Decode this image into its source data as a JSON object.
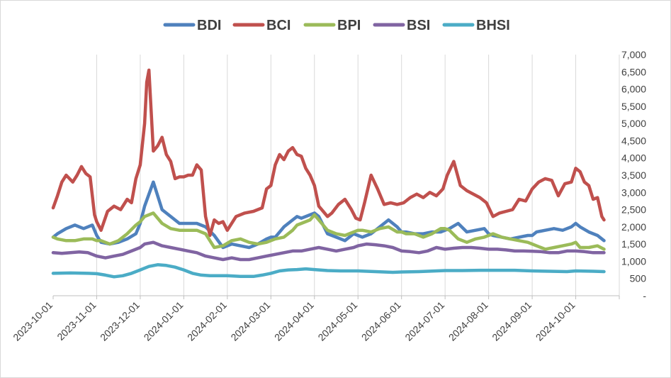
{
  "chart_data": {
    "type": "line",
    "title": "",
    "xlabel": "",
    "ylabel": "",
    "ylim": [
      0,
      7000
    ],
    "y_axis_position": "right",
    "y_ticks": [
      {
        "value": 0,
        "label": "-"
      },
      {
        "value": 500,
        "label": "500"
      },
      {
        "value": 1000,
        "label": "1,000"
      },
      {
        "value": 1500,
        "label": "1,500"
      },
      {
        "value": 2000,
        "label": "2,000"
      },
      {
        "value": 2500,
        "label": "2,500"
      },
      {
        "value": 3000,
        "label": "3,000"
      },
      {
        "value": 3500,
        "label": "3,500"
      },
      {
        "value": 4000,
        "label": "4,000"
      },
      {
        "value": 4500,
        "label": "4,500"
      },
      {
        "value": 5000,
        "label": "5,000"
      },
      {
        "value": 5500,
        "label": "5,500"
      },
      {
        "value": 6000,
        "label": "6,000"
      },
      {
        "value": 6500,
        "label": "6,500"
      },
      {
        "value": 7000,
        "label": "7,000"
      }
    ],
    "x_range": [
      0,
      13
    ],
    "x_ticks": [
      {
        "value": 0,
        "label": "2023-10-01"
      },
      {
        "value": 1,
        "label": "2023-11-01"
      },
      {
        "value": 2,
        "label": "2023-12-01"
      },
      {
        "value": 3,
        "label": "2024-01-01"
      },
      {
        "value": 4,
        "label": "2024-02-01"
      },
      {
        "value": 5,
        "label": "2024-03-01"
      },
      {
        "value": 6,
        "label": "2024-04-01"
      },
      {
        "value": 7,
        "label": "2024-05-01"
      },
      {
        "value": 8,
        "label": "2024-06-01"
      },
      {
        "value": 9,
        "label": "2024-07-01"
      },
      {
        "value": 10,
        "label": "2024-08-01"
      },
      {
        "value": 11,
        "label": "2024-09-01"
      },
      {
        "value": 12,
        "label": "2024-10-01"
      }
    ],
    "grid": "vertical",
    "legend_position": "top-center",
    "x_units": "months since 2023-10-01",
    "series": [
      {
        "name": "BDI",
        "color": "#4f81bd",
        "x": [
          0,
          0.1,
          0.3,
          0.5,
          0.7,
          0.9,
          1.0,
          1.1,
          1.3,
          1.5,
          1.7,
          1.9,
          2.0,
          2.1,
          2.3,
          2.5,
          2.7,
          2.9,
          3.1,
          3.3,
          3.5,
          3.7,
          3.9,
          4.1,
          4.3,
          4.5,
          4.7,
          4.9,
          5.0,
          5.1,
          5.3,
          5.5,
          5.6,
          5.7,
          5.9,
          6.0,
          6.1,
          6.3,
          6.5,
          6.7,
          6.9,
          7.0,
          7.1,
          7.3,
          7.5,
          7.7,
          7.9,
          8.0,
          8.1,
          8.3,
          8.5,
          8.7,
          8.9,
          9.0,
          9.1,
          9.3,
          9.5,
          9.7,
          9.9,
          10.0,
          10.1,
          10.3,
          10.5,
          10.7,
          10.9,
          11.0,
          11.1,
          11.3,
          11.5,
          11.7,
          11.9,
          12.0,
          12.1,
          12.3,
          12.5,
          12.65
        ],
        "values": [
          1700,
          1800,
          1950,
          2050,
          1950,
          2050,
          1750,
          1550,
          1500,
          1550,
          1650,
          1800,
          2100,
          2600,
          3300,
          2500,
          2300,
          2100,
          2100,
          2100,
          2000,
          1750,
          1400,
          1500,
          1450,
          1400,
          1500,
          1650,
          1700,
          1700,
          2000,
          2200,
          2300,
          2250,
          2350,
          2400,
          2300,
          1800,
          1700,
          1600,
          1800,
          1750,
          1700,
          1800,
          2000,
          2200,
          2000,
          1850,
          1850,
          1800,
          1800,
          1850,
          1850,
          1900,
          1950,
          2100,
          1850,
          1900,
          1950,
          1800,
          1750,
          1700,
          1650,
          1700,
          1750,
          1750,
          1850,
          1900,
          1950,
          1900,
          2000,
          2100,
          2000,
          1850,
          1750,
          1600
        ]
      },
      {
        "name": "BCI",
        "color": "#c0504d",
        "x": [
          0,
          0.1,
          0.2,
          0.3,
          0.45,
          0.55,
          0.65,
          0.75,
          0.85,
          0.95,
          1.0,
          1.1,
          1.25,
          1.4,
          1.55,
          1.7,
          1.8,
          1.9,
          2.0,
          2.1,
          2.15,
          2.2,
          2.3,
          2.4,
          2.5,
          2.6,
          2.7,
          2.8,
          2.9,
          3.0,
          3.1,
          3.2,
          3.3,
          3.4,
          3.5,
          3.6,
          3.7,
          3.8,
          3.9,
          4.0,
          4.2,
          4.4,
          4.6,
          4.8,
          4.9,
          5.0,
          5.1,
          5.2,
          5.3,
          5.4,
          5.5,
          5.6,
          5.7,
          5.8,
          5.9,
          6.0,
          6.1,
          6.2,
          6.3,
          6.4,
          6.55,
          6.7,
          6.85,
          6.95,
          7.05,
          7.15,
          7.3,
          7.45,
          7.6,
          7.75,
          7.9,
          8.05,
          8.2,
          8.35,
          8.5,
          8.65,
          8.8,
          8.95,
          9.05,
          9.2,
          9.35,
          9.5,
          9.65,
          9.8,
          9.95,
          10.1,
          10.25,
          10.4,
          10.55,
          10.7,
          10.85,
          11.0,
          11.15,
          11.3,
          11.45,
          11.6,
          11.75,
          11.9,
          12.0,
          12.1,
          12.2,
          12.3,
          12.4,
          12.5,
          12.6,
          12.65
        ],
        "values": [
          2550,
          2900,
          3300,
          3500,
          3300,
          3500,
          3750,
          3550,
          3450,
          2350,
          2150,
          1900,
          2450,
          2600,
          2500,
          2800,
          2700,
          3400,
          3800,
          5000,
          6200,
          6550,
          4200,
          4350,
          4600,
          4100,
          3900,
          3400,
          3450,
          3450,
          3500,
          3500,
          3800,
          3650,
          2300,
          1750,
          2200,
          2100,
          2150,
          1900,
          2300,
          2400,
          2450,
          2550,
          3100,
          3200,
          3800,
          4100,
          3950,
          4200,
          4300,
          4100,
          4050,
          3700,
          3500,
          3200,
          2600,
          2450,
          2300,
          2400,
          2650,
          2800,
          2500,
          2250,
          2200,
          2700,
          3500,
          3100,
          2650,
          2700,
          2650,
          2700,
          2850,
          2950,
          2850,
          3000,
          2900,
          3100,
          3500,
          3900,
          3200,
          3050,
          2950,
          2850,
          2700,
          2300,
          2400,
          2450,
          2500,
          2800,
          2750,
          3100,
          3300,
          3400,
          3350,
          2900,
          3250,
          3300,
          3700,
          3600,
          3300,
          3200,
          2800,
          2850,
          2300,
          2200
        ]
      },
      {
        "name": "BPI",
        "color": "#9bbb59",
        "x": [
          0,
          0.1,
          0.3,
          0.5,
          0.7,
          0.9,
          1.0,
          1.1,
          1.3,
          1.5,
          1.7,
          1.9,
          2.0,
          2.1,
          2.3,
          2.5,
          2.7,
          2.9,
          3.1,
          3.3,
          3.5,
          3.7,
          3.9,
          4.1,
          4.3,
          4.5,
          4.7,
          4.9,
          5.0,
          5.1,
          5.3,
          5.5,
          5.6,
          5.7,
          5.9,
          6.0,
          6.1,
          6.3,
          6.5,
          6.7,
          6.9,
          7.0,
          7.1,
          7.3,
          7.5,
          7.7,
          7.9,
          8.0,
          8.1,
          8.3,
          8.5,
          8.7,
          8.9,
          9.0,
          9.1,
          9.3,
          9.5,
          9.7,
          9.9,
          10.0,
          10.1,
          10.3,
          10.5,
          10.7,
          10.9,
          11.0,
          11.1,
          11.3,
          11.5,
          11.7,
          11.9,
          12.0,
          12.1,
          12.3,
          12.5,
          12.65
        ],
        "values": [
          1700,
          1650,
          1600,
          1600,
          1650,
          1650,
          1600,
          1600,
          1500,
          1600,
          1800,
          2050,
          2150,
          2300,
          2400,
          2100,
          1950,
          1900,
          1900,
          1900,
          1800,
          1400,
          1450,
          1600,
          1650,
          1550,
          1500,
          1550,
          1600,
          1650,
          1700,
          1900,
          2050,
          2100,
          2200,
          2350,
          2200,
          1900,
          1800,
          1750,
          1850,
          1900,
          1900,
          1850,
          1950,
          2000,
          1850,
          1850,
          1800,
          1800,
          1700,
          1800,
          1950,
          1950,
          1900,
          1650,
          1550,
          1650,
          1700,
          1750,
          1800,
          1700,
          1650,
          1600,
          1550,
          1500,
          1450,
          1350,
          1400,
          1450,
          1500,
          1550,
          1400,
          1400,
          1450,
          1350
        ]
      },
      {
        "name": "BSI",
        "color": "#8064a2",
        "x": [
          0,
          0.2,
          0.4,
          0.6,
          0.8,
          0.9,
          1.0,
          1.2,
          1.4,
          1.6,
          1.8,
          2.0,
          2.1,
          2.3,
          2.5,
          2.7,
          2.9,
          3.1,
          3.3,
          3.5,
          3.7,
          3.9,
          4.1,
          4.3,
          4.5,
          4.7,
          4.9,
          5.1,
          5.3,
          5.5,
          5.7,
          5.9,
          6.1,
          6.3,
          6.5,
          6.7,
          6.9,
          7.0,
          7.2,
          7.4,
          7.6,
          7.8,
          8.0,
          8.2,
          8.4,
          8.6,
          8.8,
          9.0,
          9.2,
          9.4,
          9.6,
          9.8,
          10.0,
          10.2,
          10.4,
          10.6,
          10.8,
          11.0,
          11.2,
          11.4,
          11.6,
          11.8,
          12.0,
          12.2,
          12.4,
          12.65
        ],
        "values": [
          1250,
          1230,
          1250,
          1270,
          1250,
          1200,
          1150,
          1100,
          1150,
          1200,
          1300,
          1400,
          1500,
          1550,
          1450,
          1400,
          1350,
          1300,
          1250,
          1150,
          1100,
          1050,
          1100,
          1050,
          1050,
          1100,
          1150,
          1200,
          1250,
          1300,
          1300,
          1350,
          1400,
          1350,
          1300,
          1350,
          1400,
          1450,
          1500,
          1480,
          1450,
          1400,
          1300,
          1280,
          1250,
          1300,
          1400,
          1350,
          1380,
          1400,
          1400,
          1380,
          1350,
          1350,
          1330,
          1300,
          1300,
          1290,
          1280,
          1250,
          1250,
          1300,
          1300,
          1280,
          1250,
          1250
        ]
      },
      {
        "name": "BHSI",
        "color": "#4bacc6",
        "x": [
          0,
          0.4,
          0.8,
          1.0,
          1.2,
          1.4,
          1.6,
          1.8,
          2.0,
          2.2,
          2.4,
          2.6,
          2.8,
          3.0,
          3.2,
          3.4,
          3.6,
          3.8,
          4.0,
          4.3,
          4.6,
          4.8,
          5.0,
          5.2,
          5.4,
          5.6,
          5.8,
          6.0,
          6.3,
          6.6,
          7.0,
          7.4,
          7.8,
          8.0,
          8.4,
          8.8,
          9.0,
          9.4,
          9.8,
          10.2,
          10.6,
          11.0,
          11.4,
          11.8,
          12.0,
          12.4,
          12.65
        ],
        "values": [
          650,
          660,
          650,
          640,
          600,
          550,
          580,
          650,
          750,
          850,
          900,
          880,
          830,
          750,
          650,
          600,
          580,
          580,
          580,
          560,
          560,
          600,
          650,
          720,
          750,
          760,
          780,
          760,
          730,
          720,
          720,
          700,
          680,
          690,
          700,
          720,
          730,
          730,
          740,
          740,
          740,
          720,
          710,
          700,
          720,
          710,
          700
        ]
      }
    ]
  }
}
